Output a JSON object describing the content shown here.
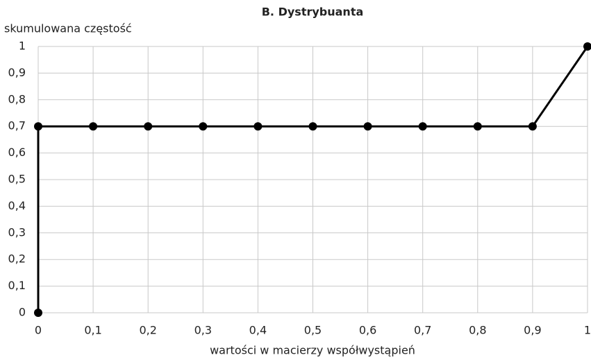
{
  "chart_data": {
    "type": "line",
    "title": "B. Dystrybuanta",
    "y_label": "skumulowana częstość",
    "x_label": "wartości w macierzy współwystąpień",
    "x": [
      0,
      0,
      0.1,
      0.2,
      0.3,
      0.4,
      0.5,
      0.6,
      0.7,
      0.8,
      0.9,
      1
    ],
    "series": [
      {
        "name": "Dystrybuanta",
        "color": "#000000",
        "values": [
          0,
          0.7,
          0.7,
          0.7,
          0.7,
          0.7,
          0.7,
          0.7,
          0.7,
          0.7,
          0.7,
          1
        ]
      }
    ],
    "xlim": [
      0,
      1
    ],
    "ylim": [
      0,
      1
    ],
    "xticks": [
      0,
      {
        "value": 0.1,
        "label": "0,1"
      },
      {
        "value": 0.2,
        "label": "0,2"
      },
      {
        "value": 0.3,
        "label": "0,3"
      },
      {
        "value": 0.4,
        "label": "0,4"
      },
      {
        "value": 0.5,
        "label": "0,5"
      },
      {
        "value": 0.6,
        "label": "0,6"
      },
      {
        "value": 0.7,
        "label": "0,7"
      },
      {
        "value": 0.8,
        "label": "0,8"
      },
      {
        "value": 0.9,
        "label": "0,9"
      },
      1
    ],
    "yticks": [
      0,
      {
        "value": 0.1,
        "label": "0,1"
      },
      {
        "value": 0.2,
        "label": "0,2"
      },
      {
        "value": 0.3,
        "label": "0,3"
      },
      {
        "value": 0.4,
        "label": "0,4"
      },
      {
        "value": 0.5,
        "label": "0,5"
      },
      {
        "value": 0.6,
        "label": "0,6"
      },
      {
        "value": 0.7,
        "label": "0,7"
      },
      {
        "value": 0.8,
        "label": "0,8"
      },
      {
        "value": 0.9,
        "label": "0,9"
      },
      1
    ],
    "grid": true
  }
}
